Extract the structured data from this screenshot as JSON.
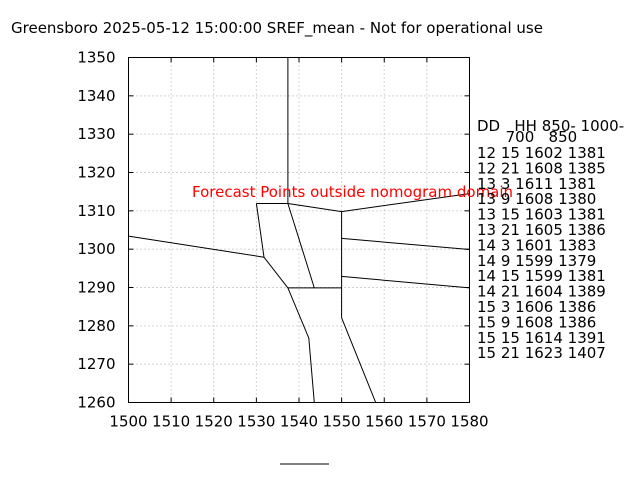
{
  "title": "Greensboro 2025-05-12 15:00:00 SREF_mean - Not for operational use",
  "warning": "Forecast Points outside nomogram domain",
  "colors": {
    "warning": "#ff0000",
    "grid": "#aaaaaa",
    "line": "#000000"
  },
  "table": {
    "header": [
      "DD   HH 850- 1000-",
      "      700   850"
    ],
    "rows": [
      "12 15 1602 1381",
      "12 21 1608 1385",
      "13  3 1611 1381",
      "13  9 1608 1380",
      "13 15 1603 1381",
      "13 21 1605 1386",
      "14  3 1601 1383",
      "14  9 1599 1379",
      "14 15 1599 1381",
      "14 21 1604 1389",
      "15  3 1606 1386",
      "15  9 1608 1386",
      "15 15 1614 1391",
      "15 21 1623 1407"
    ]
  },
  "chart_data": {
    "type": "line",
    "title": "Greensboro 2025-05-12 15:00:00 SREF_mean - Not for operational use",
    "xlabel": "",
    "ylabel": "",
    "xlim": [
      1500,
      1580
    ],
    "ylim": [
      1260,
      1350
    ],
    "x_ticks": [
      1500,
      1510,
      1520,
      1530,
      1540,
      1550,
      1560,
      1570,
      1580
    ],
    "y_ticks": [
      1260,
      1270,
      1280,
      1290,
      1300,
      1310,
      1320,
      1330,
      1340,
      1350
    ],
    "grid": true,
    "series": [
      {
        "points": [
          [
            1537.4,
            1350
          ],
          [
            1537.4,
            1311.9
          ]
        ]
      },
      {
        "points": [
          [
            1537.4,
            1311.9
          ],
          [
            1550,
            1309.8
          ],
          [
            1580,
            1314.5
          ]
        ]
      },
      {
        "points": [
          [
            1530,
            1311.9
          ],
          [
            1537.4,
            1311.9
          ]
        ]
      },
      {
        "points": [
          [
            1530,
            1311.9
          ],
          [
            1531.8,
            1297.9
          ]
        ]
      },
      {
        "points": [
          [
            1500,
            1303.4
          ],
          [
            1531.8,
            1297.9
          ]
        ]
      },
      {
        "points": [
          [
            1531.8,
            1297.9
          ],
          [
            1537.4,
            1289.9
          ]
        ]
      },
      {
        "points": [
          [
            1537.4,
            1311.9
          ],
          [
            1543.6,
            1289.9
          ]
        ]
      },
      {
        "points": [
          [
            1537.4,
            1289.9
          ],
          [
            1550,
            1289.9
          ]
        ]
      },
      {
        "points": [
          [
            1550,
            1309.8
          ],
          [
            1550,
            1282.1
          ]
        ]
      },
      {
        "points": [
          [
            1550,
            1302.8
          ],
          [
            1580,
            1299.9
          ]
        ]
      },
      {
        "points": [
          [
            1550,
            1292.9
          ],
          [
            1580,
            1289.9
          ]
        ]
      },
      {
        "points": [
          [
            1550,
            1282.1
          ],
          [
            1558,
            1260
          ]
        ]
      },
      {
        "points": [
          [
            1537.4,
            1289.9
          ],
          [
            1542.3,
            1276.8
          ],
          [
            1543.6,
            1260
          ]
        ]
      }
    ]
  }
}
